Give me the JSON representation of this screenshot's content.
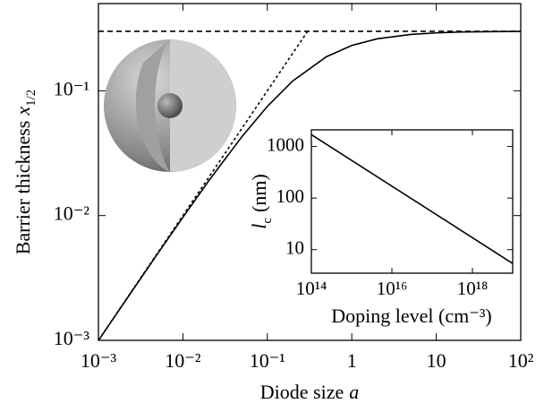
{
  "chart_data": [
    {
      "type": "line",
      "xlabel": "Diode size",
      "xlabel_var": "a",
      "ylabel": "Barrier thickness",
      "ylabel_var": "x",
      "ylabel_sub": "1/2",
      "xlog": true,
      "ylog": true,
      "xlim": [
        0.001,
        100
      ],
      "ylim": [
        0.001,
        0.5
      ],
      "xticks": [
        {
          "value": 0.001,
          "label": "10⁻³"
        },
        {
          "value": 0.01,
          "label": "10⁻²"
        },
        {
          "value": 0.1,
          "label": "10⁻¹"
        },
        1,
        10,
        {
          "value": 100,
          "label": "10²"
        }
      ],
      "yticks": [
        {
          "value": 0.001,
          "label": "10⁻³"
        },
        {
          "value": 0.01,
          "label": "10⁻²"
        },
        {
          "value": 0.1,
          "label": "10⁻¹"
        }
      ],
      "series": [
        {
          "color": "#000000",
          "dash": "solid",
          "x": [
            0.001,
            0.002,
            0.005,
            0.01,
            0.02,
            0.05,
            0.1,
            0.2,
            0.5,
            1,
            2,
            5,
            10,
            20,
            50,
            100
          ],
          "values": [
            0.000997,
            0.00199,
            0.00492,
            0.00968,
            0.0188,
            0.0429,
            0.075,
            0.12,
            0.1875,
            0.231,
            0.261,
            0.283,
            0.291,
            0.296,
            0.298,
            0.299
          ]
        },
        {
          "color": "#000000",
          "dash": "dotted",
          "x": [
            0.001,
            0.3
          ],
          "values": [
            0.001,
            0.3
          ]
        },
        {
          "color": "#000000",
          "dash": "dashed",
          "x": [
            0.001,
            100
          ],
          "values": [
            0.3,
            0.3
          ]
        }
      ]
    },
    {
      "type": "line",
      "xlabel": "Doping level (cm⁻³)",
      "ylabel": "(nm)",
      "ylabel_var": "l",
      "ylabel_sub": "c",
      "xlog": true,
      "ylog": true,
      "xlim": [
        100000000000000.0,
        1e+19
      ],
      "ylim": [
        3.5,
        2100
      ],
      "xticks": [
        {
          "value": 100000000000000.0,
          "label": "10¹⁴"
        },
        {
          "value": 1e+16,
          "label": "10¹⁶"
        },
        {
          "value": 1e+18,
          "label": "10¹⁸"
        }
      ],
      "yticks": [
        10,
        100,
        1000
      ],
      "series": [
        {
          "color": "#000000",
          "dash": "solid",
          "x": [
            100000000000000.0,
            1e+19
          ],
          "values": [
            1700,
            5.4
          ]
        }
      ]
    }
  ]
}
